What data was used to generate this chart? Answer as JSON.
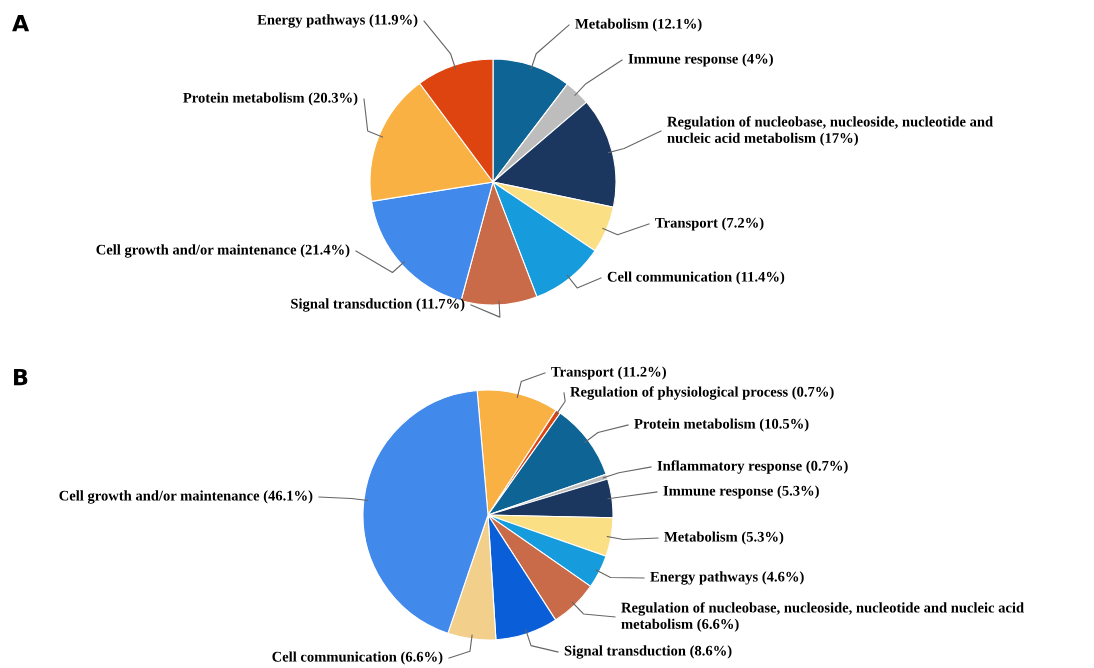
{
  "chart_data": [
    {
      "type": "pie",
      "title": "A",
      "categories": [
        "Metabolism (12.1%)",
        "Immune response (4%)",
        "Regulation of nucleobase, nucleoside, nucleotide and\nnucleic acid metabolism (17%)",
        "Transport (7.2%)",
        "Cell communication (11.4%)",
        "Signal transduction (11.7%)",
        "Cell growth and/or maintenance (21.4%)",
        "Protein metabolism (20.3%)",
        "Energy pathways (11.9%)"
      ],
      "values": [
        12.1,
        4,
        17,
        7.2,
        11.4,
        11.7,
        21.4,
        20.3,
        11.9
      ],
      "colors": [
        "#0e6494",
        "#bdbdbd",
        "#1b365f",
        "#fbdf85",
        "#169bdc",
        "#c96a48",
        "#4189ea",
        "#f9b144",
        "#dd4410"
      ]
    },
    {
      "type": "pie",
      "title": "B",
      "categories": [
        "Transport (11.2%)",
        "Regulation of physiological process (0.7%)",
        "Protein metabolism (10.5%)",
        "Inflammatory response (0.7%)",
        "Immune response (5.3%)",
        "Metabolism (5.3%)",
        "Energy pathways (4.6%)",
        "Regulation of nucleobase, nucleoside, nucleotide and nucleic acid\nmetabolism (6.6%)",
        "Signal transduction (8.6%)",
        "Cell communication (6.6%)",
        "Cell growth and/or maintenance (46.1%)"
      ],
      "values": [
        11.2,
        0.7,
        10.5,
        0.7,
        5.3,
        5.3,
        4.6,
        6.6,
        8.6,
        6.6,
        46.1
      ],
      "colors": [
        "#f9b144",
        "#dd4410",
        "#0e6494",
        "#bdbdbd",
        "#1b365f",
        "#fbdf85",
        "#169bdc",
        "#c96a48",
        "#0a5fd9",
        "#f2cf8a",
        "#4189ea"
      ]
    }
  ]
}
